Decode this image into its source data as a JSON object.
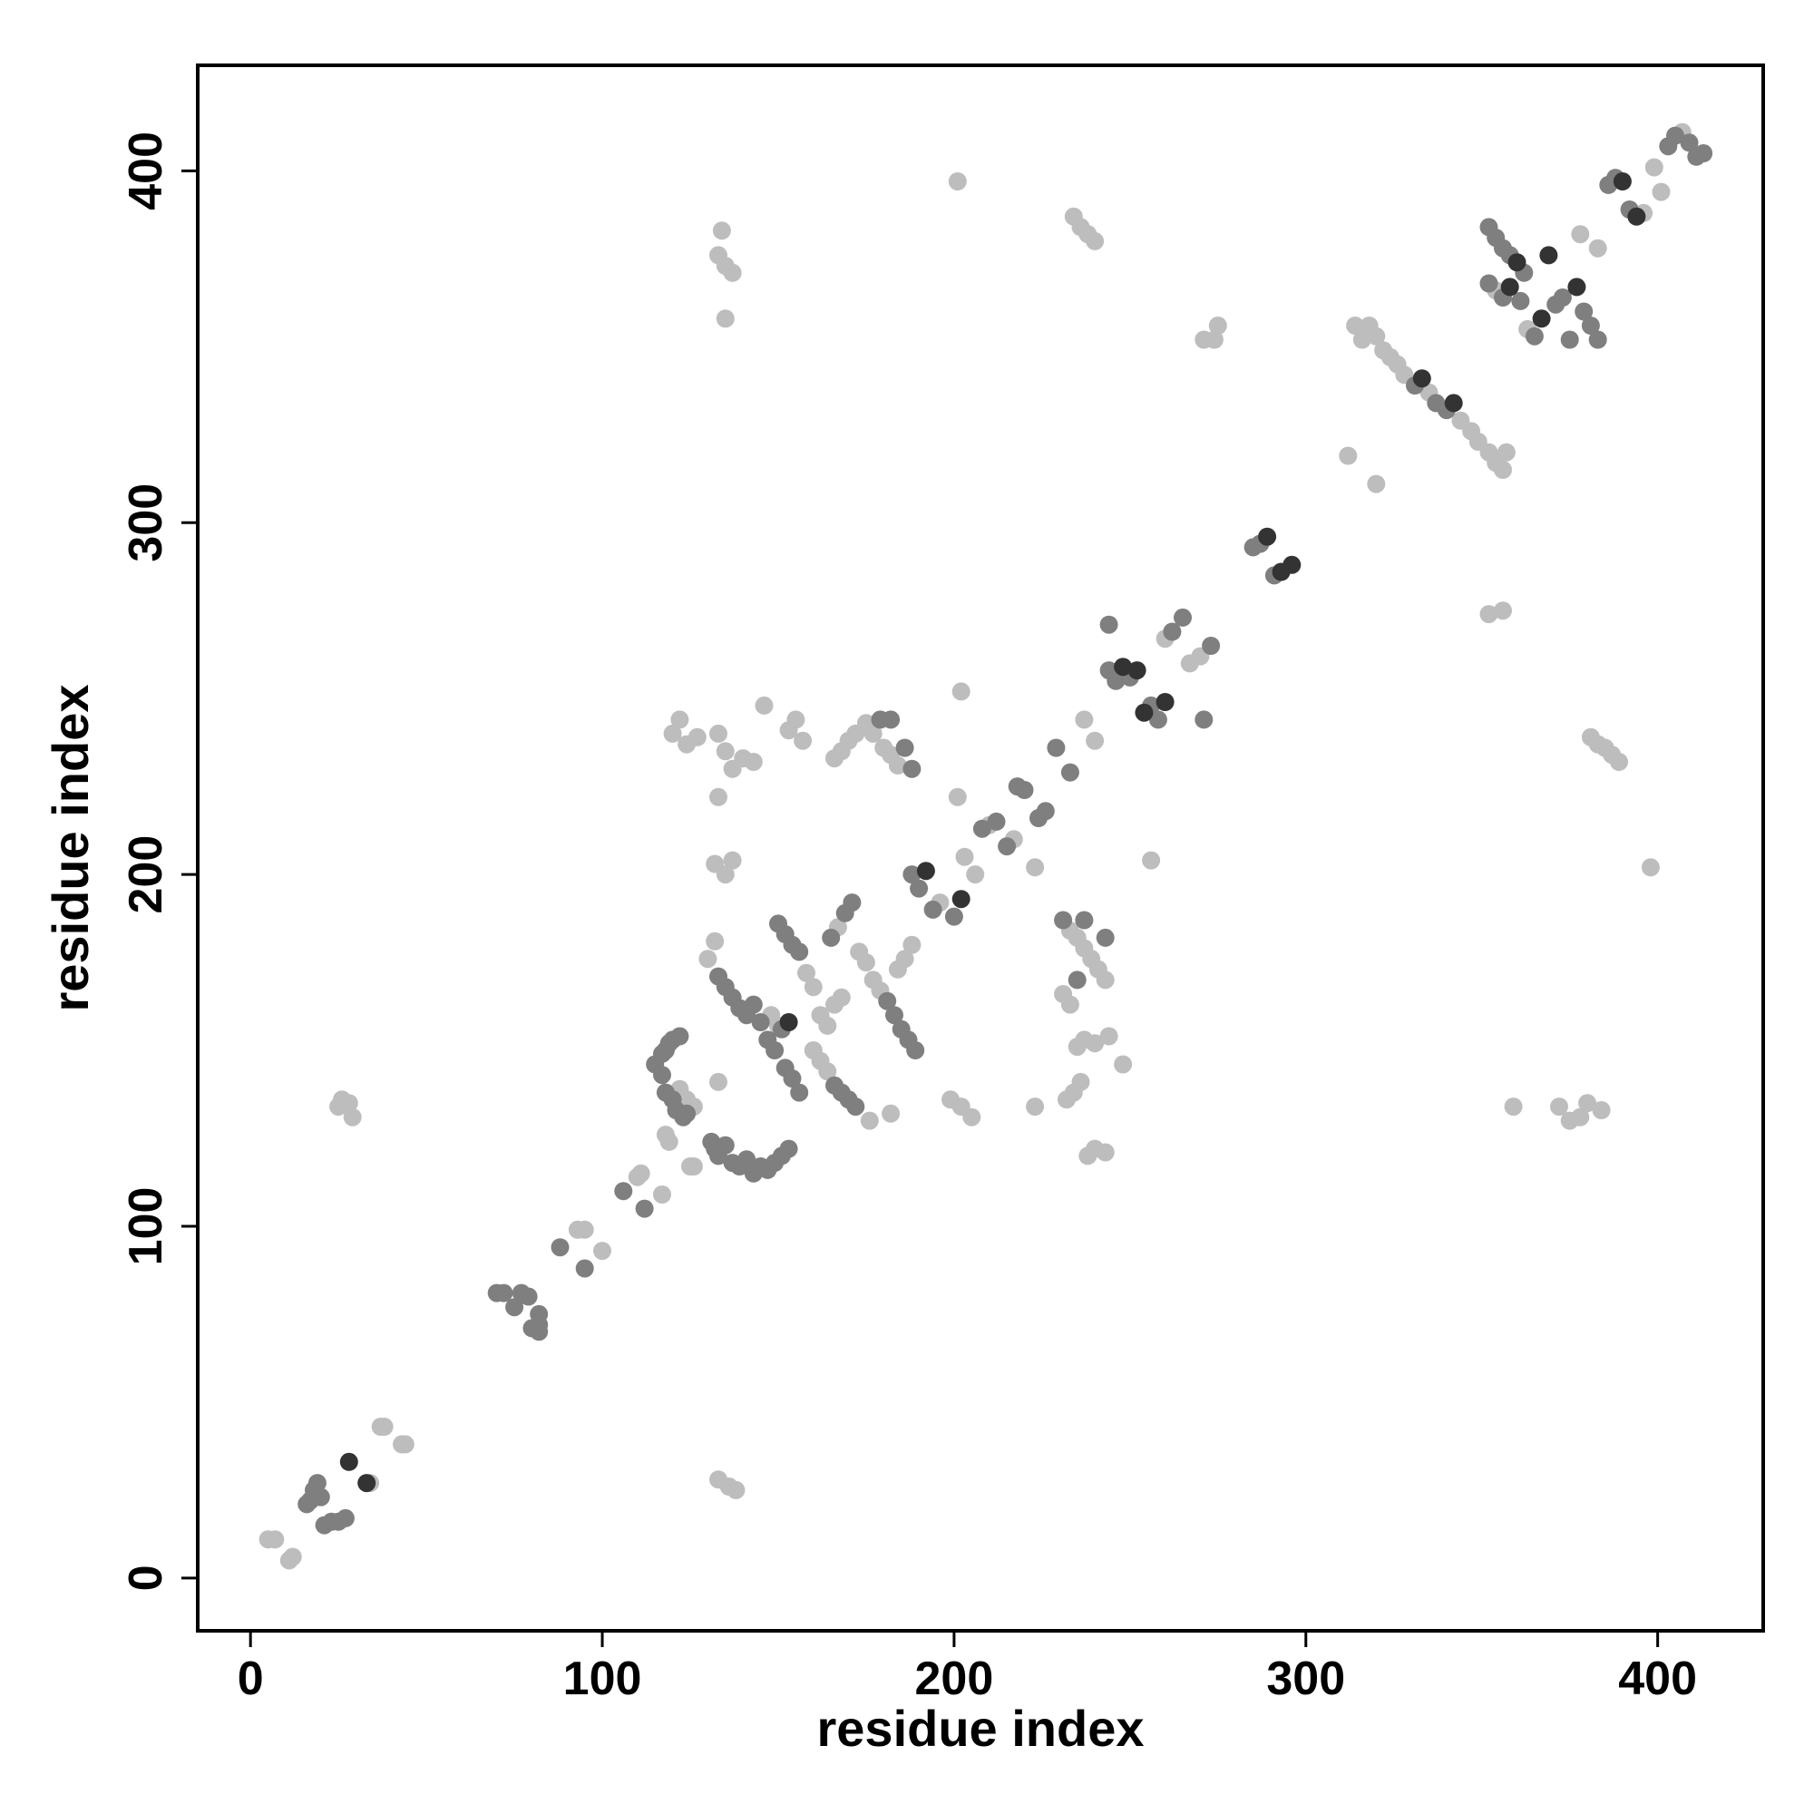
{
  "chart_data": {
    "type": "scatter",
    "title": "",
    "xlabel": "residue index",
    "ylabel": "residue index",
    "xlim": [
      -15,
      430
    ],
    "ylim": [
      -15,
      430
    ],
    "xticks": [
      0,
      100,
      200,
      300,
      400
    ],
    "yticks": [
      0,
      100,
      200,
      300,
      400
    ],
    "xtick_labels": [
      "0",
      "100",
      "200",
      "300",
      "400"
    ],
    "ytick_labels": [
      "0",
      "100",
      "200",
      "300",
      "400"
    ],
    "grid": false,
    "legend": "none",
    "colors": {
      "light": "#bdbdbd",
      "mid": "#7f7f7f",
      "dark": "#333333"
    },
    "points": [
      [
        5,
        11,
        "light"
      ],
      [
        7,
        11,
        "light"
      ],
      [
        11,
        5,
        "light"
      ],
      [
        12,
        6,
        "light"
      ],
      [
        16,
        21,
        "mid"
      ],
      [
        17,
        22,
        "mid"
      ],
      [
        18,
        25,
        "mid"
      ],
      [
        19,
        27,
        "mid"
      ],
      [
        20,
        23,
        "mid"
      ],
      [
        21,
        15,
        "mid"
      ],
      [
        23,
        16,
        "mid"
      ],
      [
        25,
        16,
        "mid"
      ],
      [
        27,
        17,
        "mid"
      ],
      [
        28,
        33,
        "dark"
      ],
      [
        33,
        27,
        "dark"
      ],
      [
        34,
        27,
        "light"
      ],
      [
        37,
        43,
        "light"
      ],
      [
        38,
        43,
        "light"
      ],
      [
        43,
        38,
        "light"
      ],
      [
        44,
        38,
        "light"
      ],
      [
        25,
        134,
        "light"
      ],
      [
        26,
        136,
        "light"
      ],
      [
        28,
        135,
        "light"
      ],
      [
        29,
        131,
        "light"
      ],
      [
        70,
        81,
        "mid"
      ],
      [
        72,
        81,
        "mid"
      ],
      [
        75,
        77,
        "mid"
      ],
      [
        77,
        81,
        "mid"
      ],
      [
        79,
        80,
        "mid"
      ],
      [
        80,
        71,
        "mid"
      ],
      [
        82,
        72,
        "mid"
      ],
      [
        82,
        70,
        "mid"
      ],
      [
        82,
        75,
        "mid"
      ],
      [
        88,
        94,
        "mid"
      ],
      [
        93,
        99,
        "light"
      ],
      [
        95,
        99,
        "light"
      ],
      [
        95,
        88,
        "mid"
      ],
      [
        100,
        93,
        "light"
      ],
      [
        106,
        110,
        "mid"
      ],
      [
        110,
        114,
        "light"
      ],
      [
        111,
        115,
        "light"
      ],
      [
        112,
        105,
        "mid"
      ],
      [
        117,
        109,
        "light"
      ],
      [
        115,
        146,
        "mid"
      ],
      [
        117,
        149,
        "mid"
      ],
      [
        118,
        150,
        "mid"
      ],
      [
        119,
        152,
        "mid"
      ],
      [
        120,
        153,
        "mid"
      ],
      [
        122,
        154,
        "mid"
      ],
      [
        117,
        143,
        "mid"
      ],
      [
        118,
        138,
        "mid"
      ],
      [
        120,
        136,
        "mid"
      ],
      [
        121,
        133,
        "mid"
      ],
      [
        123,
        131,
        "mid"
      ],
      [
        124,
        132,
        "mid"
      ],
      [
        118,
        126,
        "light"
      ],
      [
        119,
        124,
        "light"
      ],
      [
        125,
        117,
        "light"
      ],
      [
        126,
        117,
        "light"
      ],
      [
        122,
        139,
        "light"
      ],
      [
        124,
        136,
        "light"
      ],
      [
        126,
        134,
        "light"
      ],
      [
        131,
        124,
        "mid"
      ],
      [
        132,
        122,
        "mid"
      ],
      [
        133,
        120,
        "mid"
      ],
      [
        135,
        123,
        "mid"
      ],
      [
        137,
        118,
        "mid"
      ],
      [
        139,
        117,
        "mid"
      ],
      [
        141,
        119,
        "mid"
      ],
      [
        143,
        115,
        "mid"
      ],
      [
        145,
        117,
        "mid"
      ],
      [
        147,
        116,
        "mid"
      ],
      [
        149,
        118,
        "mid"
      ],
      [
        151,
        120,
        "mid"
      ],
      [
        153,
        122,
        "mid"
      ],
      [
        130,
        176,
        "light"
      ],
      [
        132,
        181,
        "light"
      ],
      [
        133,
        171,
        "mid"
      ],
      [
        135,
        168,
        "mid"
      ],
      [
        137,
        165,
        "mid"
      ],
      [
        139,
        162,
        "mid"
      ],
      [
        141,
        160,
        "mid"
      ],
      [
        143,
        163,
        "mid"
      ],
      [
        145,
        158,
        "mid"
      ],
      [
        147,
        153,
        "mid"
      ],
      [
        149,
        150,
        "mid"
      ],
      [
        151,
        156,
        "mid"
      ],
      [
        153,
        158,
        "dark"
      ],
      [
        150,
        186,
        "mid"
      ],
      [
        152,
        183,
        "mid"
      ],
      [
        154,
        180,
        "mid"
      ],
      [
        156,
        178,
        "mid"
      ],
      [
        158,
        172,
        "light"
      ],
      [
        160,
        168,
        "light"
      ],
      [
        148,
        160,
        "light"
      ],
      [
        150,
        157,
        "light"
      ],
      [
        152,
        145,
        "mid"
      ],
      [
        154,
        142,
        "mid"
      ],
      [
        156,
        138,
        "mid"
      ],
      [
        160,
        150,
        "light"
      ],
      [
        162,
        147,
        "light"
      ],
      [
        164,
        144,
        "light"
      ],
      [
        166,
        140,
        "mid"
      ],
      [
        168,
        138,
        "mid"
      ],
      [
        170,
        136,
        "mid"
      ],
      [
        172,
        134,
        "mid"
      ],
      [
        165,
        182,
        "mid"
      ],
      [
        167,
        185,
        "light"
      ],
      [
        169,
        189,
        "mid"
      ],
      [
        171,
        192,
        "mid"
      ],
      [
        173,
        178,
        "light"
      ],
      [
        175,
        175,
        "light"
      ],
      [
        177,
        170,
        "light"
      ],
      [
        179,
        167,
        "light"
      ],
      [
        181,
        164,
        "mid"
      ],
      [
        183,
        160,
        "mid"
      ],
      [
        185,
        156,
        "mid"
      ],
      [
        187,
        153,
        "mid"
      ],
      [
        189,
        150,
        "mid"
      ],
      [
        162,
        160,
        "light"
      ],
      [
        164,
        157,
        "light"
      ],
      [
        166,
        163,
        "light"
      ],
      [
        168,
        165,
        "light"
      ],
      [
        176,
        130,
        "light"
      ],
      [
        182,
        132,
        "light"
      ],
      [
        184,
        173,
        "light"
      ],
      [
        186,
        176,
        "light"
      ],
      [
        188,
        180,
        "light"
      ],
      [
        188,
        200,
        "mid"
      ],
      [
        190,
        196,
        "mid"
      ],
      [
        192,
        201,
        "dark"
      ],
      [
        194,
        190,
        "mid"
      ],
      [
        196,
        192,
        "light"
      ],
      [
        200,
        188,
        "mid"
      ],
      [
        202,
        193,
        "dark"
      ],
      [
        199,
        136,
        "light"
      ],
      [
        202,
        134,
        "light"
      ],
      [
        205,
        131,
        "light"
      ],
      [
        223,
        134,
        "light"
      ],
      [
        201,
        222,
        "light"
      ],
      [
        203,
        205,
        "light"
      ],
      [
        206,
        200,
        "light"
      ],
      [
        208,
        213,
        "mid"
      ],
      [
        210,
        214,
        "light"
      ],
      [
        212,
        215,
        "mid"
      ],
      [
        215,
        208,
        "mid"
      ],
      [
        217,
        210,
        "light"
      ],
      [
        218,
        225,
        "mid"
      ],
      [
        220,
        224,
        "mid"
      ],
      [
        223,
        202,
        "light"
      ],
      [
        224,
        216,
        "mid"
      ],
      [
        226,
        218,
        "mid"
      ],
      [
        120,
        240,
        "light"
      ],
      [
        122,
        244,
        "light"
      ],
      [
        124,
        237,
        "light"
      ],
      [
        127,
        239,
        "light"
      ],
      [
        133,
        240,
        "light"
      ],
      [
        135,
        235,
        "light"
      ],
      [
        137,
        230,
        "light"
      ],
      [
        140,
        233,
        "light"
      ],
      [
        143,
        232,
        "light"
      ],
      [
        146,
        248,
        "light"
      ],
      [
        153,
        241,
        "light"
      ],
      [
        155,
        244,
        "light"
      ],
      [
        157,
        238,
        "light"
      ],
      [
        133,
        222,
        "light"
      ],
      [
        166,
        233,
        "light"
      ],
      [
        168,
        235,
        "light"
      ],
      [
        170,
        238,
        "light"
      ],
      [
        172,
        240,
        "light"
      ],
      [
        175,
        243,
        "light"
      ],
      [
        177,
        240,
        "light"
      ],
      [
        180,
        236,
        "light"
      ],
      [
        182,
        234,
        "light"
      ],
      [
        184,
        231,
        "light"
      ],
      [
        179,
        244,
        "mid"
      ],
      [
        182,
        244,
        "mid"
      ],
      [
        186,
        236,
        "mid"
      ],
      [
        188,
        230,
        "mid"
      ],
      [
        132,
        203,
        "light"
      ],
      [
        135,
        200,
        "light"
      ],
      [
        137,
        204,
        "light"
      ],
      [
        231,
        187,
        "mid"
      ],
      [
        233,
        184,
        "light"
      ],
      [
        235,
        182,
        "light"
      ],
      [
        237,
        179,
        "light"
      ],
      [
        239,
        176,
        "light"
      ],
      [
        241,
        173,
        "light"
      ],
      [
        243,
        170,
        "light"
      ],
      [
        231,
        166,
        "light"
      ],
      [
        233,
        163,
        "light"
      ],
      [
        235,
        170,
        "mid"
      ],
      [
        237,
        187,
        "mid"
      ],
      [
        243,
        182,
        "mid"
      ],
      [
        235,
        151,
        "light"
      ],
      [
        237,
        153,
        "light"
      ],
      [
        240,
        152,
        "light"
      ],
      [
        244,
        154,
        "light"
      ],
      [
        248,
        146,
        "light"
      ],
      [
        232,
        136,
        "light"
      ],
      [
        234,
        138,
        "light"
      ],
      [
        236,
        141,
        "light"
      ],
      [
        238,
        120,
        "light"
      ],
      [
        240,
        122,
        "light"
      ],
      [
        243,
        121,
        "light"
      ],
      [
        133,
        141,
        "light"
      ],
      [
        202,
        252,
        "light"
      ],
      [
        229,
        236,
        "mid"
      ],
      [
        233,
        229,
        "mid"
      ],
      [
        237,
        244,
        "light"
      ],
      [
        240,
        238,
        "light"
      ],
      [
        244,
        258,
        "mid"
      ],
      [
        246,
        255,
        "mid"
      ],
      [
        248,
        259,
        "dark"
      ],
      [
        250,
        256,
        "mid"
      ],
      [
        252,
        258,
        "dark"
      ],
      [
        254,
        246,
        "dark"
      ],
      [
        256,
        248,
        "mid"
      ],
      [
        258,
        244,
        "mid"
      ],
      [
        260,
        249,
        "dark"
      ],
      [
        244,
        271,
        "mid"
      ],
      [
        256,
        204,
        "light"
      ],
      [
        260,
        267,
        "light"
      ],
      [
        262,
        269,
        "mid"
      ],
      [
        265,
        273,
        "mid"
      ],
      [
        267,
        260,
        "light"
      ],
      [
        270,
        262,
        "light"
      ],
      [
        271,
        244,
        "mid"
      ],
      [
        273,
        265,
        "mid"
      ],
      [
        234,
        387,
        "light"
      ],
      [
        236,
        384,
        "light"
      ],
      [
        238,
        382,
        "light"
      ],
      [
        240,
        380,
        "light"
      ],
      [
        201,
        397,
        "light"
      ],
      [
        133,
        376,
        "light"
      ],
      [
        135,
        373,
        "light"
      ],
      [
        137,
        371,
        "light"
      ],
      [
        134,
        383,
        "light"
      ],
      [
        135,
        358,
        "light"
      ],
      [
        133,
        28,
        "light"
      ],
      [
        136,
        26,
        "light"
      ],
      [
        138,
        25,
        "light"
      ],
      [
        271,
        352,
        "light"
      ],
      [
        274,
        352,
        "light"
      ],
      [
        275,
        356,
        "light"
      ],
      [
        285,
        293,
        "mid"
      ],
      [
        287,
        294,
        "mid"
      ],
      [
        289,
        296,
        "dark"
      ],
      [
        291,
        285,
        "mid"
      ],
      [
        293,
        286,
        "dark"
      ],
      [
        296,
        288,
        "dark"
      ],
      [
        312,
        319,
        "light"
      ],
      [
        314,
        356,
        "light"
      ],
      [
        316,
        352,
        "light"
      ],
      [
        318,
        356,
        "light"
      ],
      [
        320,
        353,
        "light"
      ],
      [
        322,
        349,
        "light"
      ],
      [
        324,
        347,
        "light"
      ],
      [
        326,
        345,
        "light"
      ],
      [
        328,
        342,
        "light"
      ],
      [
        331,
        339,
        "mid"
      ],
      [
        333,
        341,
        "dark"
      ],
      [
        335,
        337,
        "light"
      ],
      [
        337,
        334,
        "mid"
      ],
      [
        340,
        332,
        "mid"
      ],
      [
        342,
        334,
        "dark"
      ],
      [
        344,
        329,
        "light"
      ],
      [
        347,
        326,
        "light"
      ],
      [
        349,
        323,
        "light"
      ],
      [
        352,
        320,
        "light"
      ],
      [
        354,
        317,
        "light"
      ],
      [
        356,
        315,
        "light"
      ],
      [
        357,
        320,
        "light"
      ],
      [
        320,
        311,
        "light"
      ],
      [
        352,
        384,
        "mid"
      ],
      [
        354,
        381,
        "mid"
      ],
      [
        356,
        378,
        "mid"
      ],
      [
        358,
        376,
        "mid"
      ],
      [
        360,
        374,
        "dark"
      ],
      [
        362,
        371,
        "mid"
      ],
      [
        352,
        368,
        "mid"
      ],
      [
        354,
        366,
        "light"
      ],
      [
        356,
        364,
        "mid"
      ],
      [
        358,
        367,
        "dark"
      ],
      [
        361,
        363,
        "mid"
      ],
      [
        363,
        355,
        "light"
      ],
      [
        365,
        353,
        "mid"
      ],
      [
        367,
        358,
        "dark"
      ],
      [
        369,
        376,
        "dark"
      ],
      [
        371,
        362,
        "mid"
      ],
      [
        373,
        364,
        "mid"
      ],
      [
        375,
        352,
        "mid"
      ],
      [
        377,
        367,
        "dark"
      ],
      [
        379,
        360,
        "mid"
      ],
      [
        381,
        356,
        "mid"
      ],
      [
        383,
        352,
        "mid"
      ],
      [
        378,
        382,
        "light"
      ],
      [
        383,
        378,
        "light"
      ],
      [
        386,
        396,
        "mid"
      ],
      [
        388,
        398,
        "mid"
      ],
      [
        390,
        397,
        "dark"
      ],
      [
        392,
        389,
        "mid"
      ],
      [
        394,
        387,
        "dark"
      ],
      [
        396,
        388,
        "light"
      ],
      [
        399,
        401,
        "light"
      ],
      [
        401,
        394,
        "light"
      ],
      [
        403,
        407,
        "mid"
      ],
      [
        405,
        410,
        "mid"
      ],
      [
        407,
        411,
        "light"
      ],
      [
        409,
        408,
        "mid"
      ],
      [
        411,
        404,
        "mid"
      ],
      [
        413,
        405,
        "mid"
      ],
      [
        352,
        274,
        "light"
      ],
      [
        356,
        275,
        "light"
      ],
      [
        359,
        134,
        "light"
      ],
      [
        372,
        134,
        "light"
      ],
      [
        375,
        130,
        "light"
      ],
      [
        378,
        131,
        "light"
      ],
      [
        380,
        135,
        "light"
      ],
      [
        384,
        133,
        "light"
      ],
      [
        381,
        239,
        "light"
      ],
      [
        383,
        237,
        "light"
      ],
      [
        385,
        236,
        "light"
      ],
      [
        387,
        234,
        "light"
      ],
      [
        389,
        232,
        "light"
      ],
      [
        398,
        202,
        "light"
      ]
    ]
  }
}
